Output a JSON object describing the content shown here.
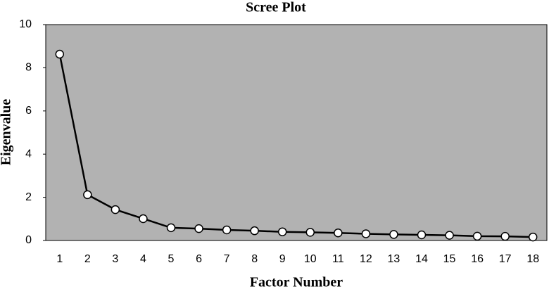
{
  "chart_data": {
    "type": "line",
    "title": "Scree Plot",
    "x_label": "Factor Number",
    "y_label": "Eigenvalue",
    "x": [
      1,
      2,
      3,
      4,
      5,
      6,
      7,
      8,
      9,
      10,
      11,
      12,
      13,
      14,
      15,
      16,
      17,
      18
    ],
    "series": [
      {
        "name": "Eigenvalue",
        "color": "#000000",
        "values": [
          8.63,
          2.12,
          1.43,
          1.01,
          0.59,
          0.55,
          0.49,
          0.45,
          0.4,
          0.38,
          0.35,
          0.31,
          0.28,
          0.26,
          0.24,
          0.2,
          0.19,
          0.16
        ]
      }
    ],
    "xlim": [
      0.5,
      18.5
    ],
    "xticks": [
      1,
      2,
      3,
      4,
      5,
      6,
      7,
      8,
      9,
      10,
      11,
      12,
      13,
      14,
      15,
      16,
      17,
      18
    ],
    "ylim": [
      0,
      10
    ],
    "yticks": [
      0,
      2,
      4,
      6,
      8,
      10
    ],
    "grid": false,
    "plot_background": "#b2b2b2"
  }
}
